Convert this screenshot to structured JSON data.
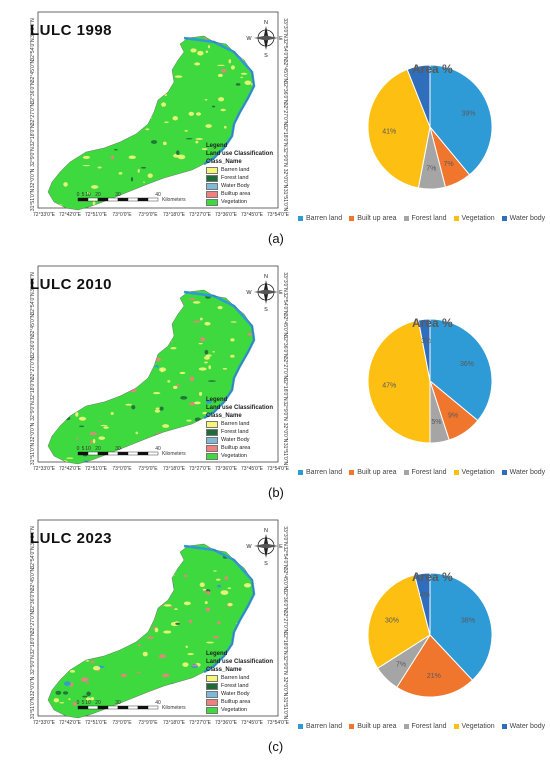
{
  "categories": [
    "Barren land",
    "Built up area",
    "Forest land",
    "Vegetation",
    "Water body"
  ],
  "colors": {
    "Barren land": "#2e9ad6",
    "Built up area": "#f0762e",
    "Forest land": "#a5a5a5",
    "Vegetation": "#fdbf12",
    "Water body": "#2f6ebc"
  },
  "map_legend": {
    "title": "Legend",
    "subtitle": "Land use Classification",
    "class_header": "Class_Name",
    "items_a": [
      "Barren land",
      "Forest land",
      "Water Body",
      "Builtup area",
      "Vegetation"
    ],
    "items_bc": [
      "Barren land",
      "Forest land",
      "Water Body",
      "Builtup area",
      "Vegetation"
    ],
    "swatches": [
      "#f5f57a",
      "#1e6b3a",
      "#7fb8d8",
      "#f08080",
      "#3ed93e"
    ]
  },
  "scale_bar": {
    "ticks": [
      "0",
      "5",
      "10",
      "20",
      "30",
      "40"
    ],
    "unit": "Kilometers"
  },
  "x_ticks": [
    "72°33'0\"E",
    "72°42'0\"E",
    "72°51'0\"E",
    "73°0'0\"E",
    "73°9'0\"E",
    "73°18'0\"E",
    "73°27'0\"E",
    "73°36'0\"E",
    "73°45'0\"E",
    "73°54'0\"E"
  ],
  "y_ticks": [
    "31°51'0\"N",
    "32°0'0\"N",
    "32°9'0\"N",
    "32°18'0\"N",
    "32°27'0\"N",
    "32°36'0\"N",
    "32°45'0\"N",
    "32°54'0\"N",
    "33°3'0\"N"
  ],
  "compass": {
    "n": "N",
    "s": "S",
    "e": "E",
    "w": "W"
  },
  "panels": [
    {
      "map_title": "LULC 1998",
      "label": "(a)",
      "chart_data": {
        "type": "pie",
        "title": "Area %",
        "categories": [
          "Barren land",
          "Built up area",
          "Forest land",
          "Vegetation",
          "Water body"
        ],
        "values": [
          39,
          7,
          7,
          41,
          6
        ],
        "labels": [
          "39%",
          "7%",
          "7%",
          "41%",
          ""
        ]
      }
    },
    {
      "map_title": "LULC 2010",
      "label": "(b)",
      "chart_data": {
        "type": "pie",
        "title": "Area %",
        "categories": [
          "Barren land",
          "Built up area",
          "Forest land",
          "Vegetation",
          "Water body"
        ],
        "values": [
          36,
          9,
          5,
          47,
          3
        ],
        "labels": [
          "36%",
          "9%",
          "5%",
          "47%",
          "3%"
        ]
      }
    },
    {
      "map_title": "LULC 2023",
      "label": "(c)",
      "chart_data": {
        "type": "pie",
        "title": "Area %",
        "categories": [
          "Barren land",
          "Built up area",
          "Forest land",
          "Vegetation",
          "Water body"
        ],
        "values": [
          38,
          21,
          7,
          30,
          4
        ],
        "labels": [
          "38%",
          "21%",
          "7%",
          "30%",
          "4%"
        ]
      }
    }
  ]
}
